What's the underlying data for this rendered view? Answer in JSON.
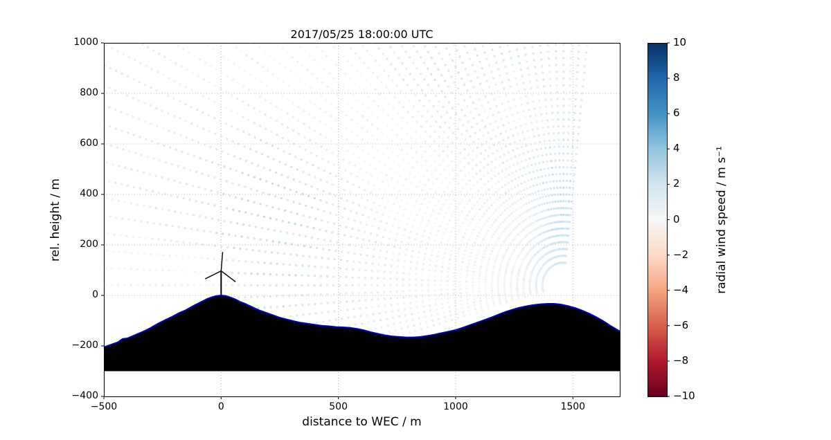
{
  "chart_data": {
    "type": "scatter",
    "title": "2017/05/25 18:00:00 UTC",
    "xlabel": "distance to WEC / m",
    "ylabel": "rel. height / m",
    "xlim": [
      -500,
      1700
    ],
    "ylim": [
      -400,
      1000
    ],
    "xticks": [
      -500,
      0,
      500,
      1000,
      1500
    ],
    "yticks": [
      -400,
      -200,
      0,
      200,
      400,
      600,
      800,
      1000
    ],
    "grid": {
      "on": true,
      "style": "dotted",
      "color": "#b5b5b5"
    },
    "colorbar": {
      "label": "radial wind speed / m s⁻¹",
      "min": -10,
      "max": 10,
      "ticks": [
        -10,
        -8,
        -6,
        -4,
        -2,
        0,
        2,
        4,
        6,
        8,
        10
      ],
      "cmap": "RdBu",
      "cmap_stops": [
        "#67001f",
        "#b2182b",
        "#d6604d",
        "#f4a582",
        "#fddbc7",
        "#f7f7f7",
        "#d1e5f0",
        "#92c5de",
        "#4393c3",
        "#2166ac",
        "#053061"
      ]
    },
    "terrain": {
      "fill_color": "#000000",
      "edge_color": "#0000cc",
      "base_level": -300,
      "profile": [
        [
          -500,
          -205
        ],
        [
          -470,
          -195
        ],
        [
          -440,
          -185
        ],
        [
          -420,
          -172
        ],
        [
          -400,
          -170
        ],
        [
          -380,
          -162
        ],
        [
          -350,
          -150
        ],
        [
          -320,
          -138
        ],
        [
          -300,
          -128
        ],
        [
          -270,
          -112
        ],
        [
          -240,
          -98
        ],
        [
          -210,
          -85
        ],
        [
          -180,
          -70
        ],
        [
          -150,
          -58
        ],
        [
          -120,
          -42
        ],
        [
          -90,
          -28
        ],
        [
          -60,
          -14
        ],
        [
          -40,
          -7
        ],
        [
          -20,
          -2
        ],
        [
          0,
          0
        ],
        [
          20,
          -2
        ],
        [
          40,
          -8
        ],
        [
          60,
          -15
        ],
        [
          80,
          -25
        ],
        [
          100,
          -32
        ],
        [
          130,
          -45
        ],
        [
          160,
          -58
        ],
        [
          190,
          -68
        ],
        [
          220,
          -78
        ],
        [
          250,
          -88
        ],
        [
          280,
          -95
        ],
        [
          310,
          -102
        ],
        [
          340,
          -108
        ],
        [
          370,
          -112
        ],
        [
          400,
          -116
        ],
        [
          430,
          -120
        ],
        [
          460,
          -122
        ],
        [
          490,
          -125
        ],
        [
          520,
          -126
        ],
        [
          550,
          -128
        ],
        [
          580,
          -132
        ],
        [
          610,
          -138
        ],
        [
          640,
          -146
        ],
        [
          670,
          -152
        ],
        [
          700,
          -158
        ],
        [
          730,
          -162
        ],
        [
          760,
          -164
        ],
        [
          790,
          -166
        ],
        [
          820,
          -166
        ],
        [
          850,
          -164
        ],
        [
          880,
          -160
        ],
        [
          910,
          -155
        ],
        [
          940,
          -149
        ],
        [
          970,
          -143
        ],
        [
          1000,
          -137
        ],
        [
          1030,
          -128
        ],
        [
          1060,
          -118
        ],
        [
          1090,
          -108
        ],
        [
          1120,
          -98
        ],
        [
          1150,
          -88
        ],
        [
          1180,
          -77
        ],
        [
          1210,
          -66
        ],
        [
          1240,
          -57
        ],
        [
          1270,
          -49
        ],
        [
          1300,
          -43
        ],
        [
          1330,
          -38
        ],
        [
          1360,
          -35
        ],
        [
          1390,
          -33
        ],
        [
          1420,
          -33
        ],
        [
          1450,
          -36
        ],
        [
          1480,
          -42
        ],
        [
          1510,
          -50
        ],
        [
          1540,
          -60
        ],
        [
          1570,
          -72
        ],
        [
          1600,
          -86
        ],
        [
          1630,
          -102
        ],
        [
          1660,
          -120
        ],
        [
          1700,
          -142
        ]
      ]
    },
    "turbine": {
      "x": 0,
      "base_height": 0,
      "hub_height": 97,
      "blade_length": 75,
      "color": "#000000"
    },
    "scan": {
      "origin": [
        1460,
        40
      ],
      "elevation_start_deg": -16,
      "elevation_end_deg": 96,
      "elevation_step_deg": 2,
      "range_min_m": 90,
      "range_max_m": 2350,
      "gate_step_m": 27,
      "dot_radius_px": 1.7,
      "base_value": 1.2,
      "jitter": 0.9,
      "wave": {
        "ax": 320,
        "az": 260,
        "phase_x": 1.1,
        "phase_z": -0.4,
        "amp": 0.9
      },
      "features": [
        {
          "x": -240,
          "z": 60,
          "sx": 240,
          "sz": 140,
          "amp": -2.6
        },
        {
          "x": 640,
          "z": 660,
          "sx": 200,
          "sz": 150,
          "amp": -2.0
        },
        {
          "x": 420,
          "z": 880,
          "sx": 160,
          "sz": 120,
          "amp": -1.4
        },
        {
          "x": 880,
          "z": 430,
          "sx": 180,
          "sz": 140,
          "amp": -1.6
        },
        {
          "x": 1240,
          "z": 780,
          "sx": 200,
          "sz": 160,
          "amp": -1.2
        },
        {
          "x": 1450,
          "z": 300,
          "sx": 100,
          "sz": 260,
          "amp": 1.6
        },
        {
          "x": 200,
          "z": 500,
          "sx": 300,
          "sz": 300,
          "amp": 1.0
        }
      ]
    }
  }
}
